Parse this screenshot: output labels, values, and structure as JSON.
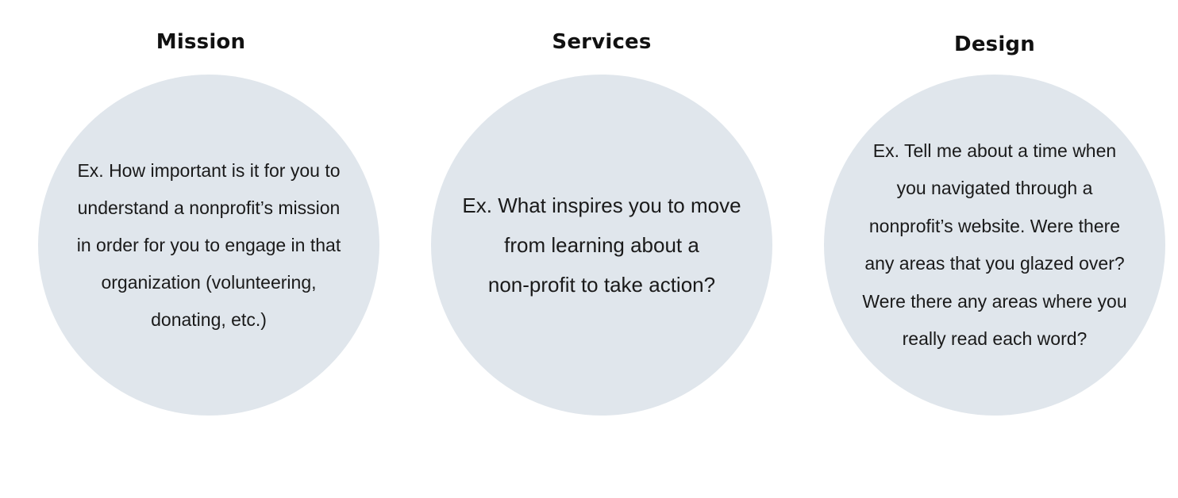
{
  "columns": [
    {
      "title": "Mission",
      "lines": [
        "Ex. How important is it for you to",
        "understand a nonprofit’s mission",
        "in order for you to engage in that",
        "organization (volunteering,",
        "donating, etc.)"
      ]
    },
    {
      "title": "Services",
      "lines": [
        "Ex. What inspires you to move",
        "from learning about a",
        "non-profit to take action?"
      ]
    },
    {
      "title": "Design",
      "lines": [
        "Ex. Tell me about a time when",
        "you navigated through a",
        "nonprofit’s website. Were there",
        "any areas that you glazed over?",
        "Were there any areas where you",
        "really read each word?"
      ]
    }
  ],
  "colors": {
    "circle_fill": "#e0e6ec",
    "text": "#1a1a1a",
    "heading": "#111111",
    "background": "#ffffff"
  }
}
